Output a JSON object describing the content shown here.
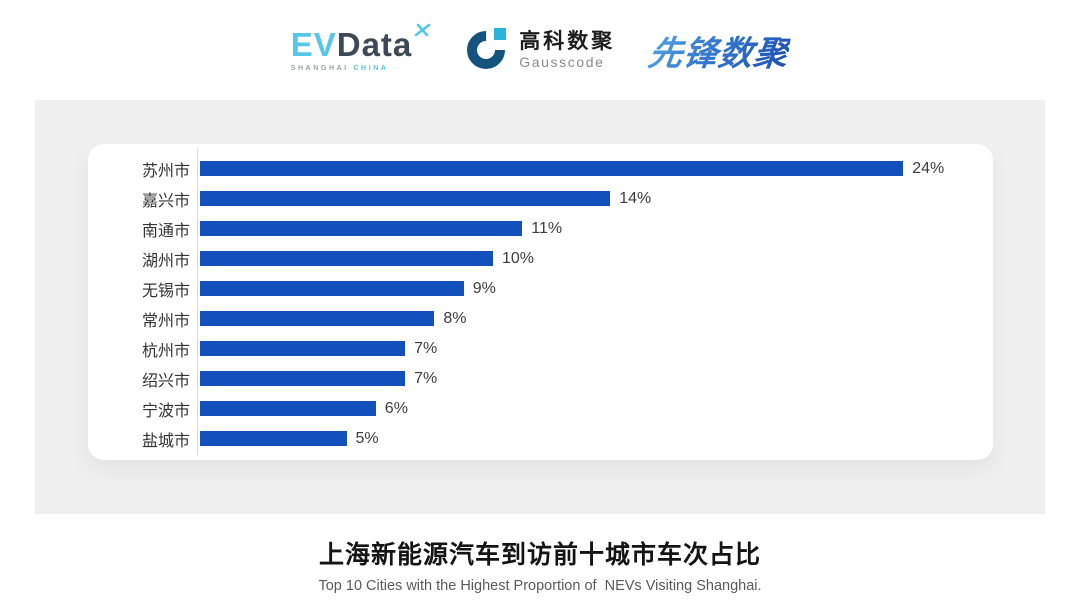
{
  "header": {
    "evdata": {
      "ev": "EV",
      "data": "Data",
      "sub_left": "SHANGHAI",
      "sub_right": "CHINA"
    },
    "gausscode": {
      "cn": "高科数聚",
      "en": "Gausscode"
    },
    "pioneer": {
      "text": "先锋数聚"
    }
  },
  "chart_data": {
    "type": "bar",
    "orientation": "horizontal",
    "title": "上海新能源汽车到访前十城市车次占比",
    "subtitle": "Top 10 Cities with the Highest Proportion of  NEVs Visiting Shanghai.",
    "categories": [
      "苏州市",
      "嘉兴市",
      "南通市",
      "湖州市",
      "无锡市",
      "常州市",
      "杭州市",
      "绍兴市",
      "宁波市",
      "盐城市"
    ],
    "values": [
      24,
      14,
      11,
      10,
      9,
      8,
      7,
      7,
      6,
      5
    ],
    "value_labels": [
      "24%",
      "14%",
      "11%",
      "10%",
      "9%",
      "8%",
      "7%",
      "7%",
      "6%",
      "5%"
    ],
    "unit": "%",
    "bar_color": "#1450BC",
    "xlim": [
      0,
      26
    ],
    "grid": false,
    "legend": false
  },
  "footer": {
    "title": "上海新能源汽车到访前十城市车次占比",
    "subtitle": "Top 10 Cities with the Highest Proportion of  NEVs Visiting Shanghai."
  },
  "colors": {
    "bar": "#1450BC",
    "panel_bg": "#F0F0F1",
    "card_bg": "#FFFFFF",
    "evdata_blue": "#55C7E9",
    "evdata_dark": "#3D4957",
    "gauss_dark_blue": "#15537F",
    "gauss_cyan": "#2BB3DC",
    "pioneer_blue": "#2A62C0"
  }
}
